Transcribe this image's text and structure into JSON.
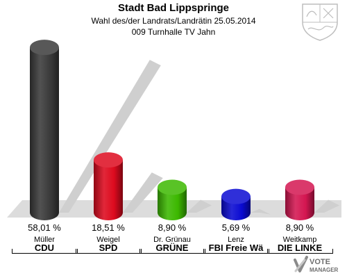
{
  "header": {
    "title": "Stadt Bad Lippspringe",
    "subtitle": "Wahl des/der Landrats/Landrätin 25.05.2014",
    "district": "009 Turnhalle TV Jahn"
  },
  "chart_data": {
    "type": "bar",
    "title": "Stadt Bad Lippspringe",
    "categories": [
      "CDU",
      "SPD",
      "GRÜNE",
      "FBI Freie Wä",
      "DIE LINKE"
    ],
    "candidates": [
      "Müller",
      "Weigel",
      "Dr. Grünau",
      "Lenz",
      "Weitkamp"
    ],
    "values": [
      58.01,
      18.51,
      8.9,
      5.69,
      8.9
    ],
    "value_labels": [
      "58,01 %",
      "18,51 %",
      "8,90 %",
      "5,69 %",
      "8,90 %"
    ],
    "colors": [
      "#3a3a3a",
      "#dd0a1e",
      "#3cb800",
      "#0a0ad2",
      "#d41651"
    ],
    "ylim": [
      0,
      60
    ],
    "grid": false,
    "legend": "none"
  },
  "logo": {
    "text_line1": "VOTE",
    "text_line2": "MANAGER"
  }
}
